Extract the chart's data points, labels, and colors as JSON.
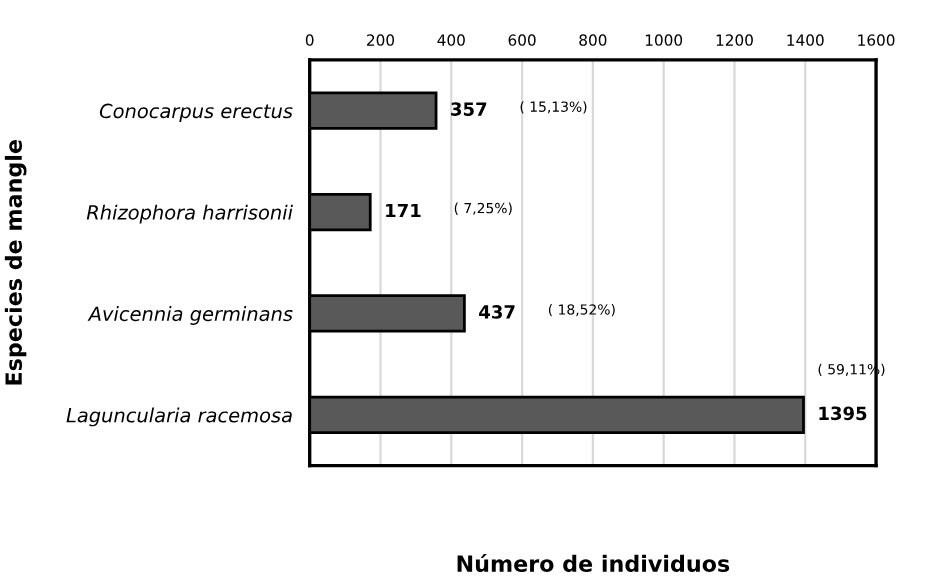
{
  "chart_data": {
    "type": "bar",
    "orientation": "horizontal",
    "xlabel": "Número de individuos",
    "ylabel": "Especies de mangle",
    "categories": [
      "Conocarpus erectus",
      "Rhizophora harrisonii",
      "Avicennia germinans",
      "Laguncularia racemosa"
    ],
    "values": [
      357,
      171,
      437,
      1395
    ],
    "color": "#595959",
    "data_labels": true,
    "xlim": [
      0,
      1600
    ],
    "xticks": [
      0,
      200,
      400,
      600,
      800,
      1000,
      1200,
      1400,
      1600
    ],
    "grid": "x",
    "legend": false,
    "annotations": [
      "( 15,13%)",
      "( 7,25%)",
      "( 18,52%)",
      "( 59,11%)"
    ]
  }
}
